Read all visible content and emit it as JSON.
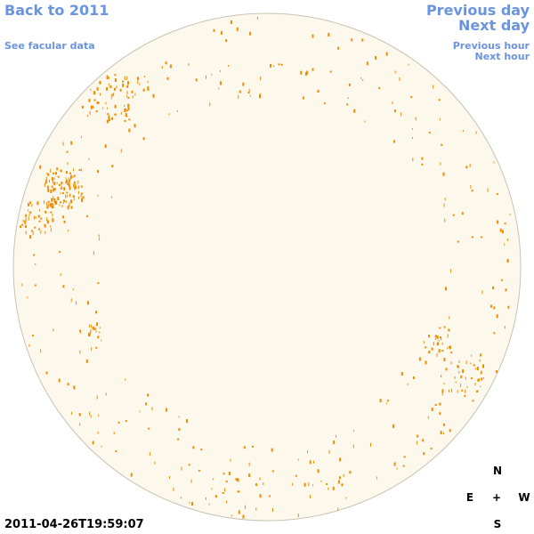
{
  "nav": {
    "back": "Back to 2011",
    "facular": "See facular data",
    "previous_day": "Previous day",
    "next_day": "Next day",
    "previous_hour": "Previous hour",
    "next_hour": "Next hour"
  },
  "timestamp": "2011-04-26T19:59:07",
  "compass": {
    "north": "N",
    "east": "E",
    "center": "+",
    "west": "W",
    "south": "S"
  }
}
